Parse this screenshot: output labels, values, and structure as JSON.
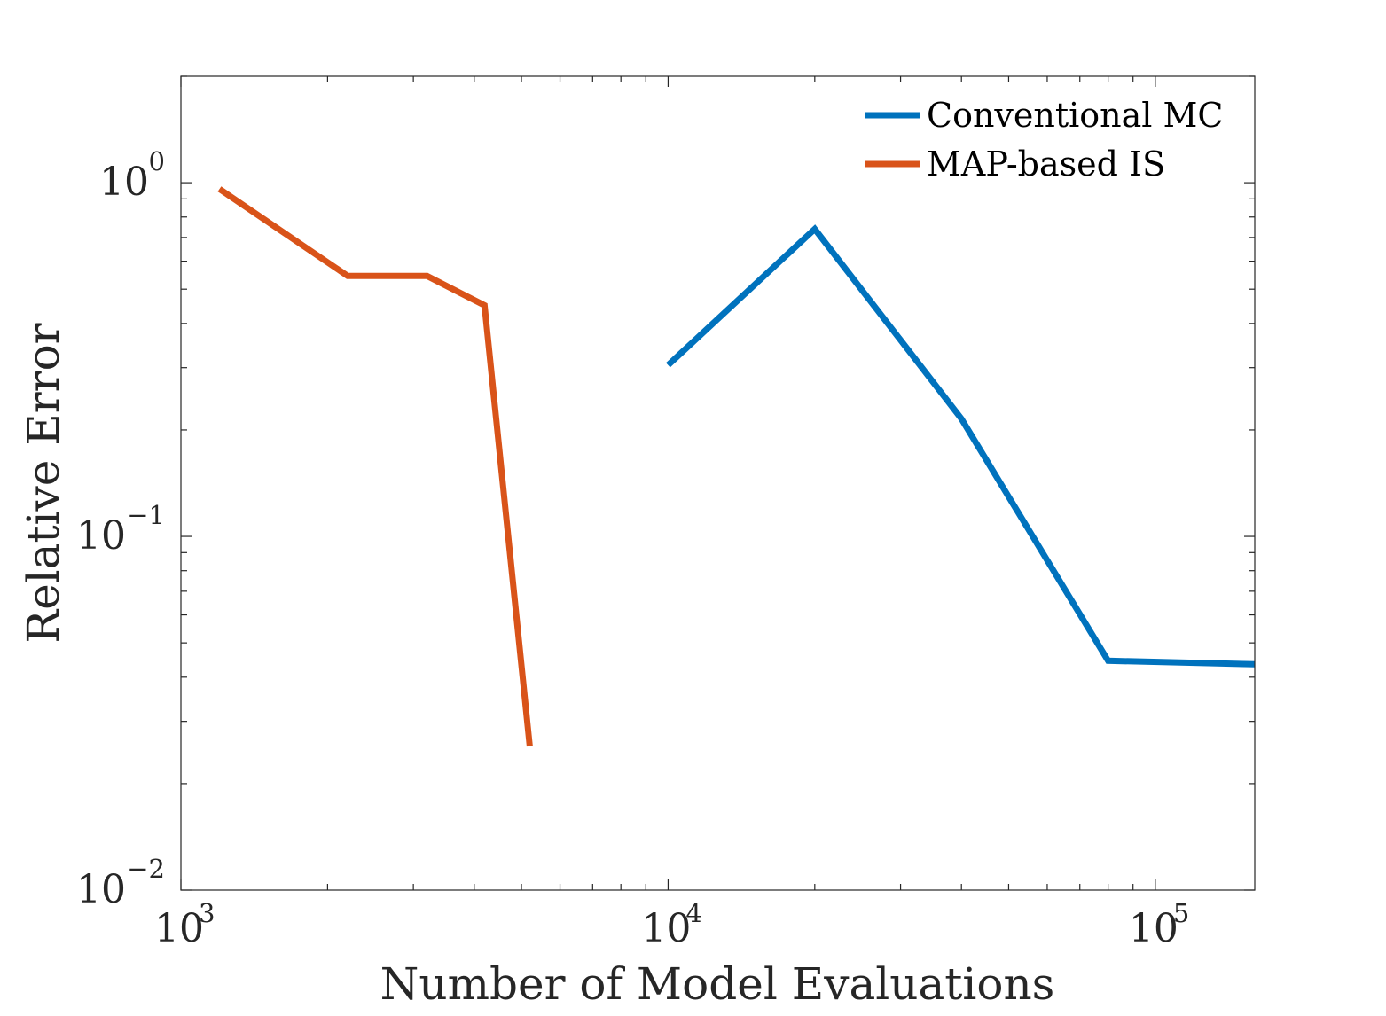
{
  "chart_data": {
    "type": "line",
    "title": "",
    "xlabel": "Number of Model Evaluations",
    "ylabel": "Relative Error",
    "xscale": "log",
    "yscale": "log",
    "xlim": [
      1000,
      160000
    ],
    "ylim": [
      0.01,
      2
    ],
    "grid": false,
    "legend_position": "top-right",
    "x_ticks": [
      {
        "base": "10",
        "exp": "3"
      },
      {
        "base": "10",
        "exp": "4"
      },
      {
        "base": "10",
        "exp": "5"
      }
    ],
    "y_ticks": [
      {
        "base": "10",
        "exp": "0"
      },
      {
        "base": "10",
        "exp": "−1"
      },
      {
        "base": "10",
        "exp": "−2"
      }
    ],
    "series": [
      {
        "name": "Conventional MC",
        "color": "#0072BD",
        "x": [
          10000,
          20000,
          40000,
          80000,
          160000
        ],
        "y": [
          0.305,
          0.74,
          0.215,
          0.0445,
          0.0435
        ]
      },
      {
        "name": "MAP-based IS",
        "color": "#D95319",
        "x": [
          1200,
          2200,
          3200,
          4200,
          5200
        ],
        "y": [
          0.96,
          0.545,
          0.545,
          0.45,
          0.0255
        ]
      }
    ]
  }
}
